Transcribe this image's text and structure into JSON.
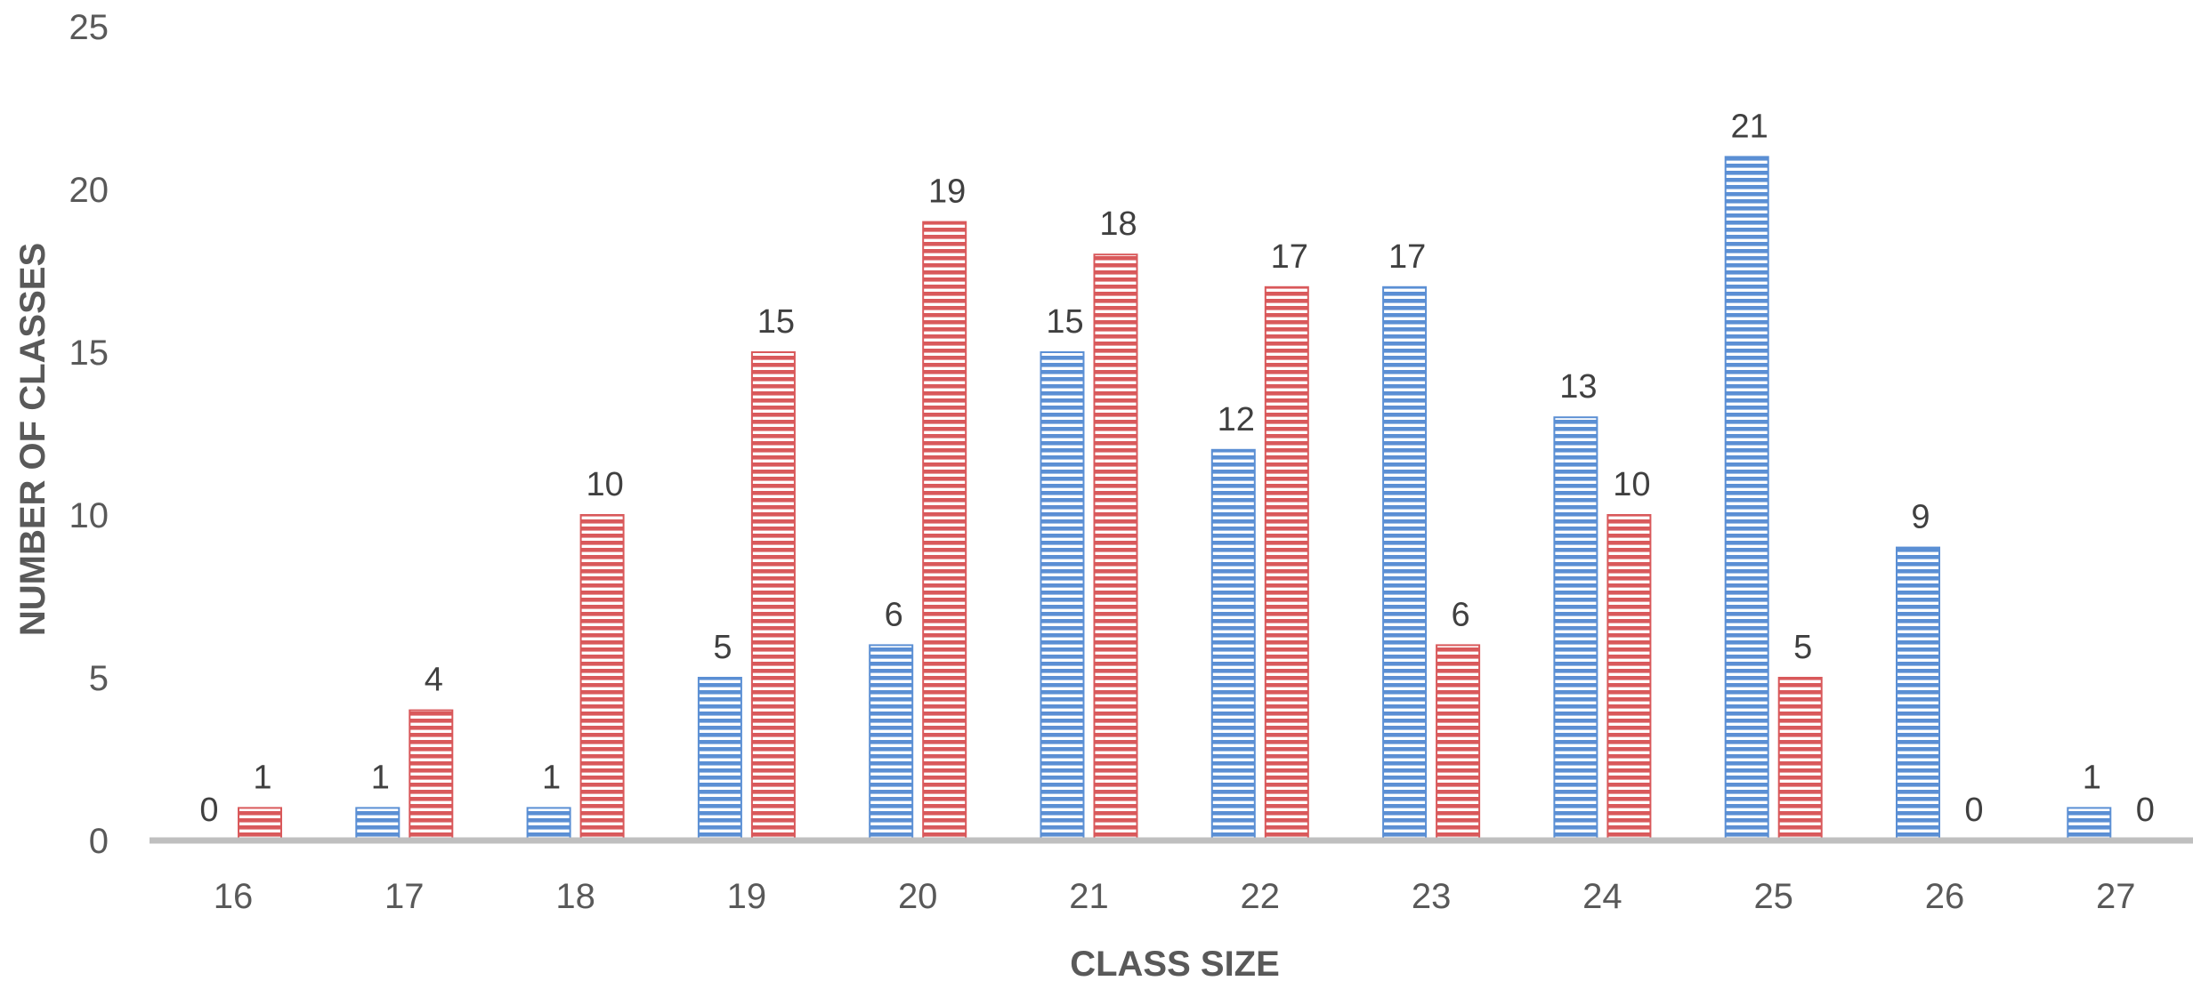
{
  "chart_data": {
    "type": "bar",
    "title": "",
    "xlabel": "CLASS SIZE",
    "ylabel": "NUMBER OF CLASSES",
    "categories": [
      "16",
      "17",
      "18",
      "19",
      "20",
      "21",
      "22",
      "23",
      "24",
      "25",
      "26",
      "27"
    ],
    "series": [
      {
        "values": [
          0,
          1,
          1,
          5,
          6,
          15,
          12,
          17,
          13,
          21,
          9,
          1
        ],
        "color": "#5b8fd4",
        "pattern": "horizontal-stripes"
      },
      {
        "values": [
          1,
          4,
          10,
          15,
          19,
          18,
          17,
          6,
          10,
          5,
          0,
          0
        ],
        "color": "#d9595b",
        "pattern": "horizontal-stripes"
      }
    ],
    "ylim": [
      0,
      25
    ],
    "yticks": [
      0,
      5,
      10,
      15,
      20,
      25
    ],
    "grid": false,
    "legend": "none",
    "data_labels": true
  }
}
